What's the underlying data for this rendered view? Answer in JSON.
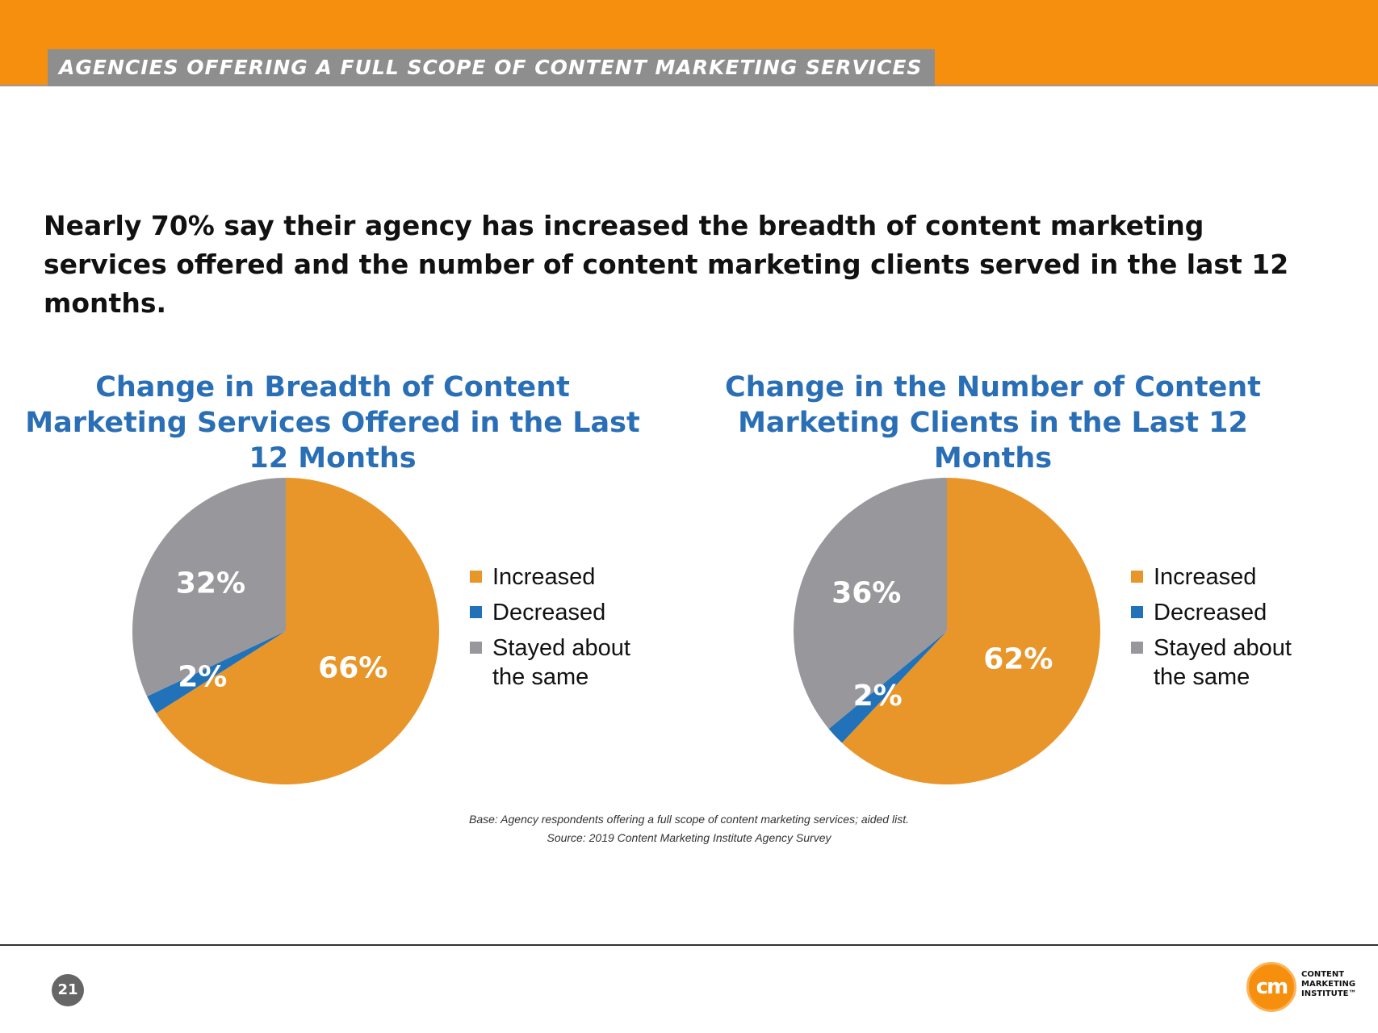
{
  "header": {
    "section_label": "AGENCIES OFFERING A FULL SCOPE OF CONTENT MARKETING SERVICES"
  },
  "headline": "Nearly 70% say their agency has increased the breadth of content marketing services offered and the number of content marketing clients served in the last 12 months.",
  "colors": {
    "increased": "#e8962a",
    "decreased": "#2272b9",
    "same": "#98989c",
    "brand_orange": "#f78f0e",
    "title_blue": "#2a6fb6"
  },
  "chart_data": [
    {
      "type": "pie",
      "title": "Change in Breadth of Content Marketing Services Offered in the Last 12 Months",
      "categories": [
        "Increased",
        "Decreased",
        "Stayed about the same"
      ],
      "values": [
        66,
        2,
        32
      ],
      "labels": [
        "66%",
        "2%",
        "32%"
      ],
      "legend": {
        "increased": "Increased",
        "decreased": "Decreased",
        "same_line1": "Stayed about",
        "same_line2": "the same"
      },
      "legend_position": "right"
    },
    {
      "type": "pie",
      "title": "Change in the Number of Content Marketing Clients in the Last 12 Months",
      "categories": [
        "Increased",
        "Decreased",
        "Stayed about the same"
      ],
      "values": [
        62,
        2,
        36
      ],
      "labels": [
        "62%",
        "2%",
        "36%"
      ],
      "legend": {
        "increased": "Increased",
        "decreased": "Decreased",
        "same_line1": "Stayed about",
        "same_line2": "the same"
      },
      "legend_position": "right"
    }
  ],
  "notes": {
    "base": "Base: Agency respondents offering a full scope of content marketing services; aided list.",
    "source": "Source: 2019 Content Marketing Institute Agency Survey"
  },
  "footer": {
    "page_number": "21",
    "logo_mark": "cm",
    "logo_line1": "CONTENT",
    "logo_line2": "MARKETING",
    "logo_line3": "INSTITUTE™"
  }
}
